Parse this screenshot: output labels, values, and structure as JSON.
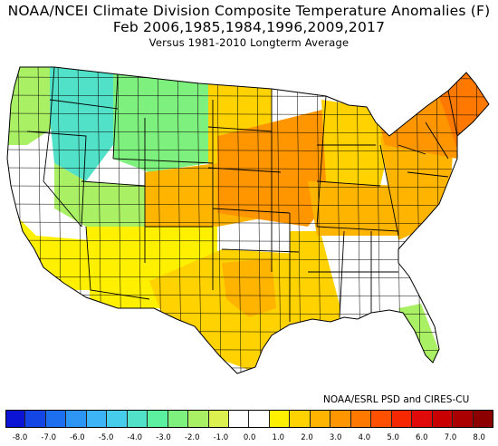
{
  "title": {
    "line1": "NOAA/NCEI Climate Division Composite Temperature Anomalies (F)",
    "line2": "Feb  2006,1985,1984,1996,2009,2017",
    "line3": "Versus 1981-2010 Longterm Average"
  },
  "credit": "NOAA/ESRL PSD and CIRES-CU",
  "colorbar": {
    "colors": [
      "#0a14d2",
      "#1446e6",
      "#1e6ef0",
      "#2d96f5",
      "#3cb4f5",
      "#46cdeb",
      "#50e1c8",
      "#5af0a0",
      "#7df07d",
      "#aaf064",
      "#dcf050",
      "#ffffff",
      "#ffffff",
      "#fff000",
      "#ffd200",
      "#ffb400",
      "#ff9600",
      "#ff7800",
      "#ff5000",
      "#f52800",
      "#e10a0a",
      "#c80000",
      "#aa0000",
      "#8c0000"
    ],
    "tick_labels": [
      "-8.0",
      "-7.0",
      "-6.0",
      "-5.0",
      "-4.0",
      "-3.0",
      "-2.0",
      "-1.0",
      "0.0",
      "1.0",
      "2.0",
      "3.0",
      "4.0",
      "5.0",
      "6.0",
      "7.0",
      "8.0"
    ]
  },
  "map": {
    "outline_color": "#000000",
    "regions": [
      {
        "name": "pacific-northwest-coast",
        "color": "#aaf064"
      },
      {
        "name": "idaho-montana-west",
        "color": "#50e1c8"
      },
      {
        "name": "northern-rockies",
        "color": "#7df07d"
      },
      {
        "name": "nevada-utah",
        "color": "#aaf064"
      },
      {
        "name": "california-interior",
        "color": "#ffffff"
      },
      {
        "name": "southern-california",
        "color": "#fff000"
      },
      {
        "name": "southwest-desert",
        "color": "#fff000"
      },
      {
        "name": "high-plains",
        "color": "#ffd200"
      },
      {
        "name": "central-plains",
        "color": "#ffb400"
      },
      {
        "name": "midwest-core",
        "color": "#ff9600"
      },
      {
        "name": "texas",
        "color": "#ffd200"
      },
      {
        "name": "texas-central",
        "color": "#ffb400"
      },
      {
        "name": "gulf-coast",
        "color": "#ffd200"
      },
      {
        "name": "southeast-interior",
        "color": "#ffffff"
      },
      {
        "name": "florida-peninsula",
        "color": "#aaf064"
      },
      {
        "name": "ohio-valley",
        "color": "#ffb400"
      },
      {
        "name": "great-lakes",
        "color": "#ffd200"
      },
      {
        "name": "mid-atlantic",
        "color": "#ffb400"
      },
      {
        "name": "northeast",
        "color": "#ff9600"
      },
      {
        "name": "new-england",
        "color": "#ff7800"
      }
    ]
  }
}
